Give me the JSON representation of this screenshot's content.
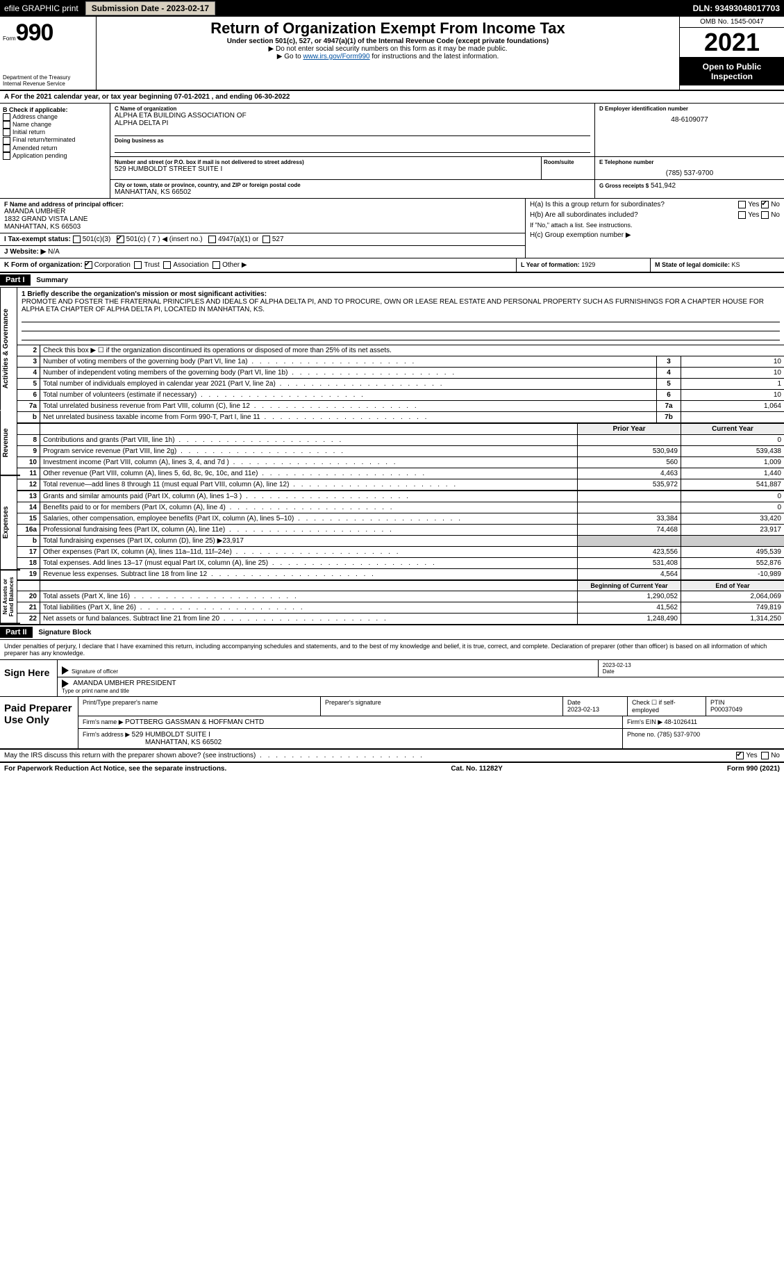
{
  "topbar": {
    "efile": "efile GRAPHIC print",
    "sub_label": "Submission Date - 2023-02-17",
    "dln": "DLN: 93493048017703"
  },
  "header": {
    "form_word": "Form",
    "form_num": "990",
    "title": "Return of Organization Exempt From Income Tax",
    "subtitle": "Under section 501(c), 527, or 4947(a)(1) of the Internal Revenue Code (except private foundations)",
    "note1": "▶ Do not enter social security numbers on this form as it may be made public.",
    "note2_pre": "▶ Go to ",
    "note2_link": "www.irs.gov/Form990",
    "note2_post": " for instructions and the latest information.",
    "dept": "Department of the Treasury",
    "irs": "Internal Revenue Service",
    "omb": "OMB No. 1545-0047",
    "year": "2021",
    "open": "Open to Public Inspection"
  },
  "row_a": "A For the 2021 calendar year, or tax year beginning 07-01-2021    , and ending 06-30-2022",
  "col_b": {
    "label": "B Check if applicable:",
    "opts": [
      "Address change",
      "Name change",
      "Initial return",
      "Final return/terminated",
      "Amended return",
      "Application pending"
    ]
  },
  "c": {
    "label": "C Name of organization",
    "name1": "ALPHA ETA BUILDING ASSOCIATION OF",
    "name2": "ALPHA DELTA PI",
    "dba_label": "Doing business as",
    "addr_label": "Number and street (or P.O. box if mail is not delivered to street address)",
    "addr": "529 HUMBOLDT STREET SUITE I",
    "room_label": "Room/suite",
    "city_label": "City or town, state or province, country, and ZIP or foreign postal code",
    "city": "MANHATTAN, KS  66502"
  },
  "d": {
    "label": "D Employer identification number",
    "ein": "48-6109077"
  },
  "e": {
    "label": "E Telephone number",
    "phone": "(785) 537-9700"
  },
  "g": {
    "label": "G Gross receipts $",
    "val": "541,942"
  },
  "f": {
    "label": "F Name and address of principal officer:",
    "name": "AMANDA UMBHER",
    "addr1": "1832 GRAND VISTA LANE",
    "addr2": "MANHATTAN, KS  66503"
  },
  "h": {
    "a_label": "H(a)  Is this a group return for subordinates?",
    "a_yes": "Yes",
    "a_no": "No",
    "b_label": "H(b)  Are all subordinates included?",
    "b_note": "If \"No,\" attach a list. See instructions.",
    "c_label": "H(c)  Group exemption number ▶"
  },
  "i": {
    "label": "I    Tax-exempt status:",
    "o1": "501(c)(3)",
    "o2": "501(c) ( 7 ) ◀ (insert no.)",
    "o3": "4947(a)(1) or",
    "o4": "527"
  },
  "j": {
    "label": "J   Website: ▶",
    "val": "N/A"
  },
  "k": {
    "label": "K Form of organization:",
    "o1": "Corporation",
    "o2": "Trust",
    "o3": "Association",
    "o4": "Other ▶"
  },
  "l": {
    "label": "L Year of formation:",
    "val": "1929"
  },
  "m": {
    "label": "M State of legal domicile:",
    "val": "KS"
  },
  "part1": {
    "hdr": "Part I",
    "title": "Summary"
  },
  "mission": {
    "label": "1  Briefly describe the organization's mission or most significant activities:",
    "text": "PROMOTE AND FOSTER THE FRATERNAL PRINCIPLES AND IDEALS OF ALPHA DELTA PI, AND TO PROCURE, OWN OR LEASE REAL ESTATE AND PERSONAL PROPERTY SUCH AS FURNISHINGS FOR A CHAPTER HOUSE FOR ALPHA ETA CHAPTER OF ALPHA DELTA PI, LOCATED IN MANHATTAN, KS."
  },
  "gov_lines": [
    {
      "n": "2",
      "d": "Check this box ▶ ☐ if the organization discontinued its operations or disposed of more than 25% of its net assets."
    },
    {
      "n": "3",
      "d": "Number of voting members of the governing body (Part VI, line 1a)",
      "box": "3",
      "v": "10"
    },
    {
      "n": "4",
      "d": "Number of independent voting members of the governing body (Part VI, line 1b)",
      "box": "4",
      "v": "10"
    },
    {
      "n": "5",
      "d": "Total number of individuals employed in calendar year 2021 (Part V, line 2a)",
      "box": "5",
      "v": "1"
    },
    {
      "n": "6",
      "d": "Total number of volunteers (estimate if necessary)",
      "box": "6",
      "v": "10"
    },
    {
      "n": "7a",
      "d": "Total unrelated business revenue from Part VIII, column (C), line 12",
      "box": "7a",
      "v": "1,064"
    },
    {
      "n": "b",
      "d": "Net unrelated business taxable income from Form 990-T, Part I, line 11",
      "box": "7b",
      "v": ""
    }
  ],
  "col_hdrs": {
    "prior": "Prior Year",
    "current": "Current Year"
  },
  "rev_label": "Revenue",
  "rev_lines": [
    {
      "n": "8",
      "d": "Contributions and grants (Part VIII, line 1h)",
      "p": "",
      "c": "0"
    },
    {
      "n": "9",
      "d": "Program service revenue (Part VIII, line 2g)",
      "p": "530,949",
      "c": "539,438"
    },
    {
      "n": "10",
      "d": "Investment income (Part VIII, column (A), lines 3, 4, and 7d )",
      "p": "560",
      "c": "1,009"
    },
    {
      "n": "11",
      "d": "Other revenue (Part VIII, column (A), lines 5, 6d, 8c, 9c, 10c, and 11e)",
      "p": "4,463",
      "c": "1,440"
    },
    {
      "n": "12",
      "d": "Total revenue—add lines 8 through 11 (must equal Part VIII, column (A), line 12)",
      "p": "535,972",
      "c": "541,887"
    }
  ],
  "exp_label": "Expenses",
  "exp_lines": [
    {
      "n": "13",
      "d": "Grants and similar amounts paid (Part IX, column (A), lines 1–3 )",
      "p": "",
      "c": "0"
    },
    {
      "n": "14",
      "d": "Benefits paid to or for members (Part IX, column (A), line 4)",
      "p": "",
      "c": "0"
    },
    {
      "n": "15",
      "d": "Salaries, other compensation, employee benefits (Part IX, column (A), lines 5–10)",
      "p": "33,384",
      "c": "33,420"
    },
    {
      "n": "16a",
      "d": "Professional fundraising fees (Part IX, column (A), line 11e)",
      "p": "74,468",
      "c": "23,917"
    },
    {
      "n": "b",
      "d": "Total fundraising expenses (Part IX, column (D), line 25) ▶23,917",
      "p": "",
      "c": ""
    },
    {
      "n": "17",
      "d": "Other expenses (Part IX, column (A), lines 11a–11d, 11f–24e)",
      "p": "423,556",
      "c": "495,539"
    },
    {
      "n": "18",
      "d": "Total expenses. Add lines 13–17 (must equal Part IX, column (A), line 25)",
      "p": "531,408",
      "c": "552,876"
    },
    {
      "n": "19",
      "d": "Revenue less expenses. Subtract line 18 from line 12",
      "p": "4,564",
      "c": "-10,989"
    }
  ],
  "net_label": "Net Assets or Fund Balances",
  "net_hdrs": {
    "begin": "Beginning of Current Year",
    "end": "End of Year"
  },
  "net_lines": [
    {
      "n": "20",
      "d": "Total assets (Part X, line 16)",
      "p": "1,290,052",
      "c": "2,064,069"
    },
    {
      "n": "21",
      "d": "Total liabilities (Part X, line 26)",
      "p": "41,562",
      "c": "749,819"
    },
    {
      "n": "22",
      "d": "Net assets or fund balances. Subtract line 21 from line 20",
      "p": "1,248,490",
      "c": "1,314,250"
    }
  ],
  "gov_label": "Activities & Governance",
  "part2": {
    "hdr": "Part II",
    "title": "Signature Block"
  },
  "declare": "Under penalties of perjury, I declare that I have examined this return, including accompanying schedules and statements, and to the best of my knowledge and belief, it is true, correct, and complete. Declaration of preparer (other than officer) is based on all information of which preparer has any knowledge.",
  "sign": {
    "here": "Sign Here",
    "sig_label": "Signature of officer",
    "date_label": "Date",
    "date": "2023-02-13",
    "name": "AMANDA UMBHER  PRESIDENT",
    "name_label": "Type or print name and title"
  },
  "paid": {
    "label": "Paid Preparer Use Only",
    "print_label": "Print/Type preparer's name",
    "sigp_label": "Preparer's signature",
    "pdate_label": "Date",
    "pdate": "2023-02-13",
    "check_label": "Check ☐ if self-employed",
    "ptin_label": "PTIN",
    "ptin": "P00037049",
    "firm_label": "Firm's name    ▶",
    "firm": "POTTBERG GASSMAN & HOFFMAN CHTD",
    "fein_label": "Firm's EIN ▶",
    "fein": "48-1026411",
    "faddr_label": "Firm's address ▶",
    "faddr1": "529 HUMBOLDT SUITE I",
    "faddr2": "MANHATTAN, KS  66502",
    "fphone_label": "Phone no.",
    "fphone": "(785) 537-9700"
  },
  "discuss": {
    "text": "May the IRS discuss this return with the preparer shown above? (see instructions)",
    "yes": "Yes",
    "no": "No"
  },
  "footer": {
    "left": "For Paperwork Reduction Act Notice, see the separate instructions.",
    "mid": "Cat. No. 11282Y",
    "right": "Form 990 (2021)"
  }
}
